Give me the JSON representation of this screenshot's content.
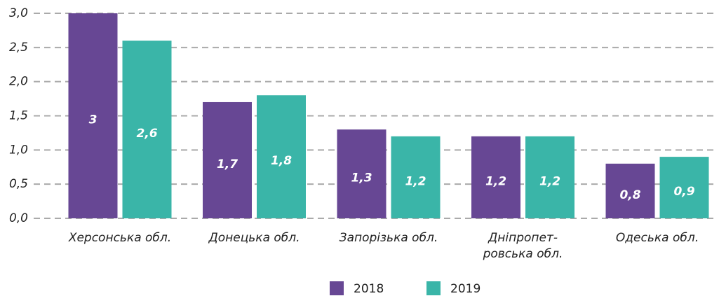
{
  "chart_data": {
    "type": "bar",
    "categories": [
      "Херсонська обл.",
      "Донецька обл.",
      "Запорізька обл.",
      "Дніпропет-\nровська обл.",
      "Одеська обл."
    ],
    "series": [
      {
        "name": "2018",
        "color": "#674794",
        "values": [
          3,
          1.7,
          1.3,
          1.2,
          0.8
        ],
        "value_labels": [
          "3",
          "1,7",
          "1,3",
          "1,2",
          "0,8"
        ]
      },
      {
        "name": "2019",
        "color": "#3ab5a8",
        "values": [
          2.6,
          1.8,
          1.2,
          1.2,
          0.9
        ],
        "value_labels": [
          "2,6",
          "1,8",
          "1,2",
          "1,2",
          "0,9"
        ]
      }
    ],
    "ylim": [
      0,
      3
    ],
    "yticks": [
      {
        "value": 0,
        "label": "0,0"
      },
      {
        "value": 0.5,
        "label": "0,5"
      },
      {
        "value": 1,
        "label": "1,0"
      },
      {
        "value": 1.5,
        "label": "1,5"
      },
      {
        "value": 2,
        "label": "2,0"
      },
      {
        "value": 2.5,
        "label": "2,5"
      },
      {
        "value": 3,
        "label": "3,0"
      }
    ],
    "grid": true,
    "legend": "bottom"
  }
}
